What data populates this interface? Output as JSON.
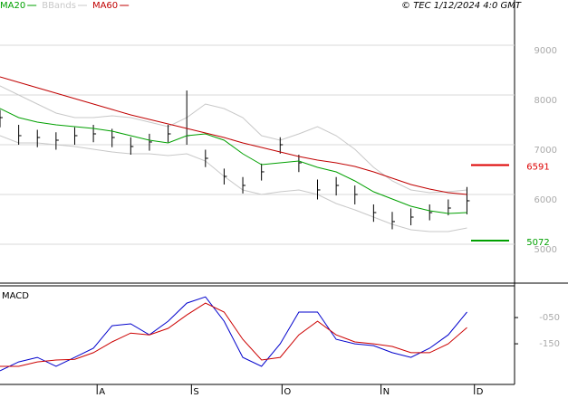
{
  "chart_data": [
    {
      "type": "stock",
      "title": "© TEC 1/12/2024 4:0 GMT",
      "xlim": [
        0,
        27.5
      ],
      "ylim": [
        4236,
        9909
      ],
      "yticks": [
        9000,
        8000,
        7000,
        6000,
        5000
      ],
      "grid": true,
      "ohlc": {
        "color": "#000000",
        "high": [
          7700,
          7400,
          7300,
          7250,
          7350,
          7400,
          7320,
          7150,
          7220,
          7400,
          8090,
          6900,
          6520,
          6350,
          6620,
          7150,
          6800,
          6300,
          6350,
          6180,
          5800,
          5650,
          5720,
          5800,
          5900,
          6150
        ],
        "low": [
          7350,
          7000,
          6950,
          6900,
          7000,
          7050,
          6950,
          6800,
          6880,
          7050,
          7000,
          6550,
          6200,
          6020,
          6280,
          6820,
          6450,
          5900,
          5980,
          5800,
          5450,
          5300,
          5380,
          5480,
          5580,
          5600
        ],
        "close": [
          7545,
          7182,
          7145,
          7091,
          7182,
          7218,
          7145,
          6964,
          7055,
          7218,
          7182,
          6727,
          6364,
          6182,
          6455,
          7000,
          6636,
          6091,
          6182,
          6000,
          5636,
          5455,
          5545,
          5636,
          5727,
          5873
        ]
      },
      "series": [
        {
          "name": "MA20",
          "color": "#00a000",
          "values": [
            7727,
            7545,
            7455,
            7400,
            7364,
            7327,
            7273,
            7182,
            7091,
            7036,
            7182,
            7218,
            7091,
            6818,
            6600,
            6636,
            6673,
            6545,
            6455,
            6273,
            6055,
            5909,
            5764,
            5673,
            5618,
            5636
          ]
        },
        {
          "name": "BBands",
          "color": "#c8c8c8",
          "upper": [
            8182,
            8000,
            7818,
            7636,
            7545,
            7545,
            7582,
            7545,
            7455,
            7364,
            7545,
            7818,
            7727,
            7545,
            7182,
            7091,
            7218,
            7364,
            7182,
            6909,
            6545,
            6273,
            6091,
            6036,
            6055,
            6091
          ],
          "lower": [
            7182,
            7036,
            7036,
            7000,
            6964,
            6909,
            6855,
            6818,
            6818,
            6782,
            6818,
            6673,
            6364,
            6091,
            6000,
            6055,
            6091,
            6000,
            5818,
            5691,
            5545,
            5400,
            5291,
            5255,
            5255,
            5327
          ]
        },
        {
          "name": "MA60",
          "color": "#c00000",
          "values": [
            8364,
            8255,
            8145,
            8036,
            7927,
            7818,
            7709,
            7600,
            7509,
            7418,
            7327,
            7236,
            7145,
            7036,
            6945,
            6855,
            6764,
            6691,
            6636,
            6564,
            6455,
            6327,
            6200,
            6109,
            6036,
            6000
          ]
        }
      ],
      "levels": [
        {
          "value": 6591,
          "color": "#dd0000"
        },
        {
          "value": 5072,
          "color": "#00a000"
        }
      ]
    },
    {
      "type": "line",
      "title": "MACD",
      "xlim": [
        0,
        27.5
      ],
      "ylim": [
        -305,
        71
      ],
      "yticks": [
        {
          "value": -50,
          "label": "-050"
        },
        {
          "value": -150,
          "label": "-150"
        }
      ],
      "xticks": [
        {
          "value": 5.2,
          "label": "A"
        },
        {
          "value": 10.25,
          "label": "S"
        },
        {
          "value": 15.1,
          "label": "O"
        },
        {
          "value": 20.4,
          "label": "N"
        },
        {
          "value": 25.4,
          "label": "D"
        }
      ],
      "series": [
        {
          "color": "#0000cc",
          "values": [
            -253,
            -219,
            -202,
            -236,
            -202,
            -167,
            -81,
            -74,
            -116,
            -64,
            5,
            29,
            -64,
            -202,
            -236,
            -150,
            -29,
            -29,
            -133,
            -150,
            -157,
            -184,
            -202,
            -167,
            -116,
            -29
          ]
        },
        {
          "color": "#cc0000",
          "values": [
            -236,
            -236,
            -219,
            -212,
            -209,
            -184,
            -143,
            -109,
            -116,
            -91,
            -40,
            5,
            -29,
            -133,
            -212,
            -202,
            -116,
            -64,
            -116,
            -143,
            -150,
            -160,
            -184,
            -184,
            -150,
            -88
          ]
        }
      ]
    }
  ]
}
